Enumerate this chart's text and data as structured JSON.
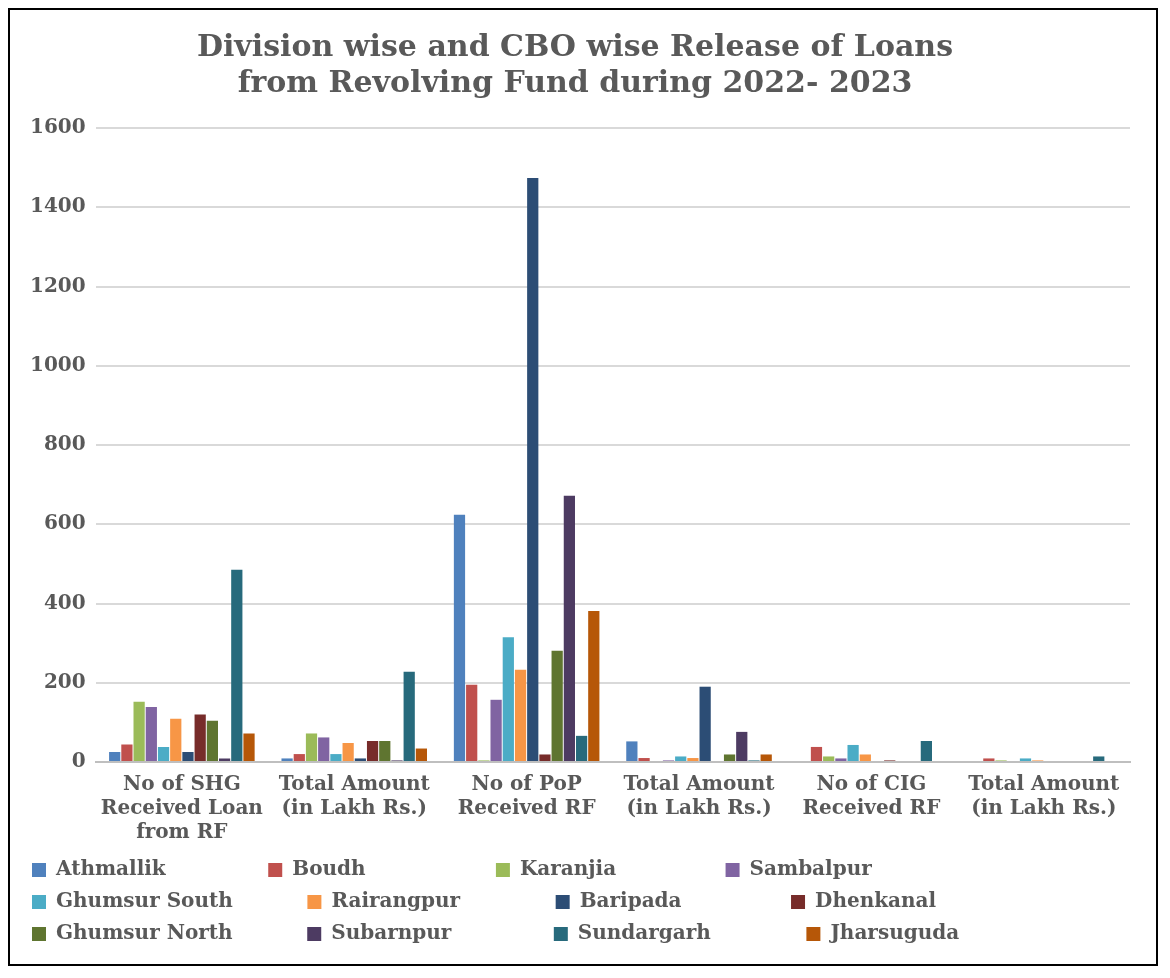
{
  "chart_data": {
    "type": "bar",
    "title": "Division wise and CBO wise Release of Loans from Revolving Fund during 2022- 2023",
    "categories": [
      "No of SHG Received Loan from RF",
      "Total Amount (in Lakh Rs.)",
      "No of PoP Received RF",
      "Total Amount (in Lakh Rs.)",
      "No of CIG Received RF",
      "Total Amount (in Lakh Rs.)"
    ],
    "series": [
      {
        "name": "Athmallik",
        "color": "#4f81bd",
        "values": [
          25,
          9,
          624,
          52,
          0,
          0
        ]
      },
      {
        "name": "Boudh",
        "color": "#c0504d",
        "values": [
          44,
          20,
          195,
          10,
          38,
          9
        ]
      },
      {
        "name": "Karanjia",
        "color": "#9bbb59",
        "values": [
          152,
          72,
          4,
          0,
          14,
          4
        ]
      },
      {
        "name": "Sambalpur",
        "color": "#8064a2",
        "values": [
          139,
          62,
          157,
          4,
          9,
          0
        ]
      },
      {
        "name": "Ghumsur South",
        "color": "#4bacc6",
        "values": [
          38,
          20,
          315,
          14,
          43,
          9
        ]
      },
      {
        "name": "Rairangpur",
        "color": "#f79646",
        "values": [
          109,
          48,
          233,
          10,
          19,
          4
        ]
      },
      {
        "name": "Baripada",
        "color": "#2c4d75",
        "values": [
          25,
          9,
          1474,
          190,
          0,
          0
        ]
      },
      {
        "name": "Dhenkanal",
        "color": "#772c2a",
        "values": [
          120,
          53,
          19,
          0,
          4,
          0
        ]
      },
      {
        "name": "Ghumsur North",
        "color": "#5f7530",
        "values": [
          104,
          53,
          281,
          19,
          0,
          0
        ]
      },
      {
        "name": "Subarnpur",
        "color": "#4d3b62",
        "values": [
          9,
          4,
          672,
          76,
          0,
          0
        ]
      },
      {
        "name": "Sundargarh",
        "color": "#276a7c",
        "values": [
          485,
          228,
          66,
          4,
          53,
          14
        ]
      },
      {
        "name": "Jharsuguda",
        "color": "#b65708",
        "values": [
          72,
          34,
          381,
          19,
          0,
          0
        ]
      }
    ],
    "ylim": [
      0,
      1600
    ],
    "yticks": [
      0,
      200,
      400,
      600,
      800,
      1000,
      1200,
      1400,
      1600
    ],
    "grid": "y",
    "legend": "bottom"
  }
}
